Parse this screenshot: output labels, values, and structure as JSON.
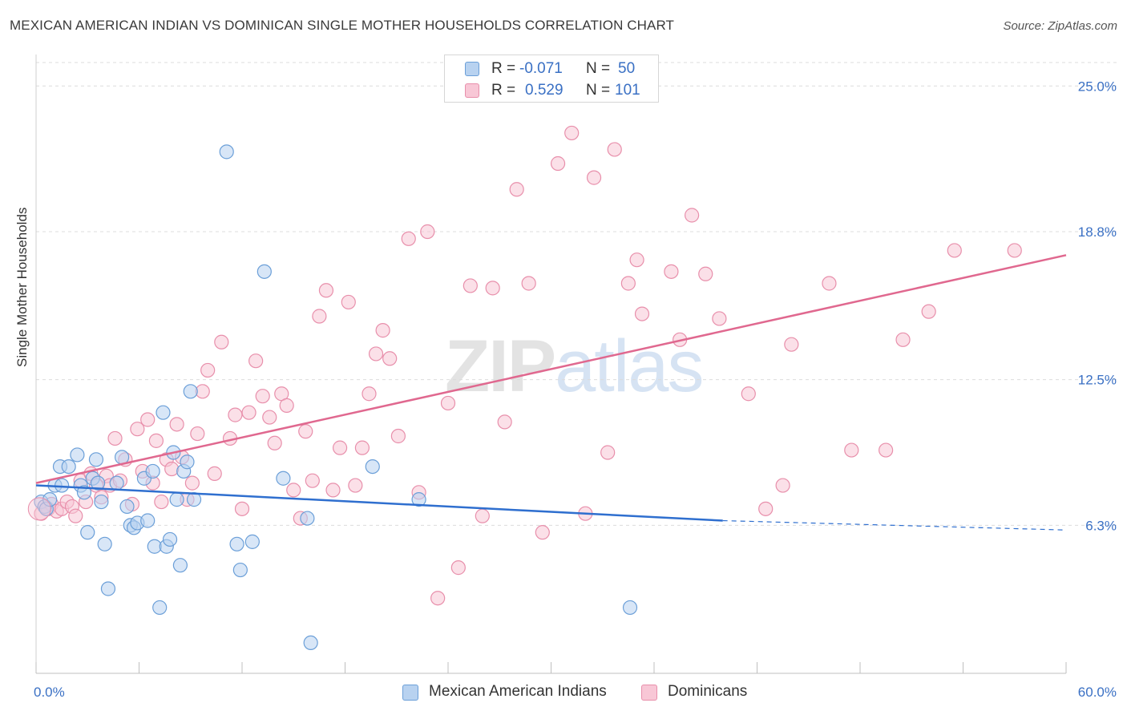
{
  "title": "MEXICAN AMERICAN INDIAN VS DOMINICAN SINGLE MOTHER HOUSEHOLDS CORRELATION CHART",
  "source": "Source: ZipAtlas.com",
  "watermark": {
    "zip": "ZIP",
    "atlas": "atlas"
  },
  "legend_top": {
    "rows": [
      {
        "r_label": "R =",
        "r_value": "-0.071",
        "n_label": "N =",
        "n_value": "50"
      },
      {
        "r_label": "R =",
        "r_value": "0.529",
        "n_label": "N =",
        "n_value": "101"
      }
    ]
  },
  "legend_bottom": [
    {
      "label": "Mexican American Indians"
    },
    {
      "label": "Dominicans"
    }
  ],
  "colors": {
    "blue_fill": "#b8d2f0",
    "blue_stroke": "#6b9fd8",
    "blue_line": "#2f6fcf",
    "pink_fill": "#f8c7d6",
    "pink_stroke": "#e88fab",
    "pink_line": "#e0688f",
    "tick_label": "#3a70c4",
    "grid": "#dcdcdc"
  },
  "chart_data": {
    "type": "scatter",
    "title": "MEXICAN AMERICAN INDIAN VS DOMINICAN SINGLE MOTHER HOUSEHOLDS CORRELATION CHART",
    "xlabel": "",
    "ylabel": "Single Mother Households",
    "xlim": [
      0,
      60
    ],
    "ylim": [
      0,
      26.0
    ],
    "x_tick_labels": [
      {
        "value": 0,
        "label": "0.0%"
      },
      {
        "value": 60,
        "label": "60.0%"
      }
    ],
    "y_ticks": [
      {
        "value": 6.3,
        "label": "6.3%"
      },
      {
        "value": 12.5,
        "label": "12.5%"
      },
      {
        "value": 18.8,
        "label": "18.8%"
      },
      {
        "value": 25.0,
        "label": "25.0%"
      }
    ],
    "grid": true,
    "legend_position": "top-center",
    "series": [
      {
        "name": "Mexican American Indians",
        "color": "#6b9fd8",
        "trend": {
          "x": [
            0,
            40
          ],
          "y": [
            8.0,
            6.5
          ],
          "dashed_extension_to_x": 60,
          "dashed_end_y": 6.1
        },
        "points": [
          [
            0.3,
            7.3
          ],
          [
            0.5,
            7.1
          ],
          [
            0.6,
            7.0
          ],
          [
            0.8,
            7.4
          ],
          [
            1.1,
            8.0
          ],
          [
            1.4,
            8.8
          ],
          [
            1.5,
            8.0
          ],
          [
            1.9,
            8.8
          ],
          [
            2.4,
            9.3
          ],
          [
            2.6,
            8.0
          ],
          [
            2.8,
            7.7
          ],
          [
            3.0,
            6.0
          ],
          [
            3.3,
            8.3
          ],
          [
            3.5,
            9.1
          ],
          [
            3.6,
            8.1
          ],
          [
            3.8,
            7.3
          ],
          [
            4.0,
            5.5
          ],
          [
            4.2,
            3.6
          ],
          [
            4.7,
            8.1
          ],
          [
            5.0,
            9.2
          ],
          [
            5.3,
            7.1
          ],
          [
            5.5,
            6.3
          ],
          [
            5.7,
            6.2
          ],
          [
            5.9,
            6.4
          ],
          [
            6.3,
            8.3
          ],
          [
            6.5,
            6.5
          ],
          [
            6.8,
            8.6
          ],
          [
            6.9,
            5.4
          ],
          [
            7.2,
            2.8
          ],
          [
            7.4,
            11.1
          ],
          [
            7.6,
            5.4
          ],
          [
            7.8,
            5.7
          ],
          [
            8.0,
            9.4
          ],
          [
            8.2,
            7.4
          ],
          [
            8.4,
            4.6
          ],
          [
            8.6,
            8.6
          ],
          [
            8.8,
            9.0
          ],
          [
            9.0,
            12.0
          ],
          [
            9.2,
            7.4
          ],
          [
            11.1,
            22.2
          ],
          [
            11.7,
            5.5
          ],
          [
            11.9,
            4.4
          ],
          [
            12.6,
            5.6
          ],
          [
            13.3,
            17.1
          ],
          [
            14.4,
            8.3
          ],
          [
            15.8,
            6.6
          ],
          [
            16.0,
            1.3
          ],
          [
            19.6,
            8.8
          ],
          [
            22.3,
            7.4
          ],
          [
            34.6,
            2.8
          ]
        ]
      },
      {
        "name": "Dominicans",
        "color": "#e88fab",
        "trend": {
          "x": [
            0,
            60
          ],
          "y": [
            8.1,
            17.8
          ]
        },
        "points": [
          [
            0.3,
            6.8
          ],
          [
            0.5,
            7.1
          ],
          [
            0.7,
            7.0
          ],
          [
            0.9,
            7.2
          ],
          [
            1.2,
            6.9
          ],
          [
            1.5,
            7.0
          ],
          [
            1.8,
            7.3
          ],
          [
            2.1,
            7.1
          ],
          [
            2.3,
            6.7
          ],
          [
            2.6,
            8.2
          ],
          [
            2.9,
            7.3
          ],
          [
            3.2,
            8.5
          ],
          [
            3.5,
            8.0
          ],
          [
            3.8,
            7.5
          ],
          [
            4.1,
            8.4
          ],
          [
            4.3,
            8.0
          ],
          [
            4.6,
            10.0
          ],
          [
            4.9,
            8.2
          ],
          [
            5.2,
            9.1
          ],
          [
            5.6,
            7.2
          ],
          [
            5.9,
            10.4
          ],
          [
            6.2,
            8.6
          ],
          [
            6.5,
            10.8
          ],
          [
            6.8,
            8.1
          ],
          [
            7.0,
            9.9
          ],
          [
            7.3,
            7.3
          ],
          [
            7.6,
            9.1
          ],
          [
            7.9,
            8.7
          ],
          [
            8.2,
            10.6
          ],
          [
            8.5,
            9.2
          ],
          [
            8.8,
            7.4
          ],
          [
            9.1,
            8.1
          ],
          [
            9.4,
            10.2
          ],
          [
            9.7,
            12.0
          ],
          [
            10.0,
            12.9
          ],
          [
            10.4,
            8.5
          ],
          [
            10.8,
            14.1
          ],
          [
            11.3,
            10.0
          ],
          [
            11.6,
            11.0
          ],
          [
            12.0,
            7.0
          ],
          [
            12.4,
            11.1
          ],
          [
            12.8,
            13.3
          ],
          [
            13.2,
            11.8
          ],
          [
            13.6,
            10.9
          ],
          [
            13.9,
            9.8
          ],
          [
            14.3,
            11.9
          ],
          [
            14.6,
            11.4
          ],
          [
            15.0,
            7.8
          ],
          [
            15.4,
            6.6
          ],
          [
            15.7,
            10.3
          ],
          [
            16.1,
            8.2
          ],
          [
            16.5,
            15.2
          ],
          [
            16.9,
            16.3
          ],
          [
            17.3,
            7.8
          ],
          [
            17.7,
            9.6
          ],
          [
            18.2,
            15.8
          ],
          [
            18.6,
            8.0
          ],
          [
            19.0,
            9.6
          ],
          [
            19.4,
            11.9
          ],
          [
            19.8,
            13.6
          ],
          [
            20.2,
            14.6
          ],
          [
            20.6,
            13.4
          ],
          [
            21.1,
            10.1
          ],
          [
            21.7,
            18.5
          ],
          [
            22.3,
            7.7
          ],
          [
            22.8,
            18.8
          ],
          [
            23.4,
            3.2
          ],
          [
            24.0,
            11.5
          ],
          [
            24.6,
            4.5
          ],
          [
            25.3,
            16.5
          ],
          [
            26.0,
            6.7
          ],
          [
            26.6,
            16.4
          ],
          [
            27.3,
            10.7
          ],
          [
            28.0,
            20.6
          ],
          [
            28.7,
            16.6
          ],
          [
            29.5,
            6.0
          ],
          [
            30.4,
            21.7
          ],
          [
            31.2,
            23.0
          ],
          [
            32.0,
            6.8
          ],
          [
            32.5,
            21.1
          ],
          [
            33.3,
            9.4
          ],
          [
            33.7,
            22.3
          ],
          [
            34.5,
            16.6
          ],
          [
            35.0,
            17.6
          ],
          [
            35.3,
            15.3
          ],
          [
            37.0,
            17.1
          ],
          [
            37.5,
            14.2
          ],
          [
            38.2,
            19.5
          ],
          [
            39.0,
            17.0
          ],
          [
            39.8,
            15.1
          ],
          [
            41.5,
            11.9
          ],
          [
            42.5,
            7.0
          ],
          [
            43.5,
            8.0
          ],
          [
            44.0,
            14.0
          ],
          [
            46.2,
            16.6
          ],
          [
            47.5,
            9.5
          ],
          [
            49.5,
            9.5
          ],
          [
            50.5,
            14.2
          ],
          [
            52.0,
            15.4
          ],
          [
            53.5,
            18.0
          ],
          [
            57.0,
            18.0
          ]
        ]
      }
    ]
  }
}
